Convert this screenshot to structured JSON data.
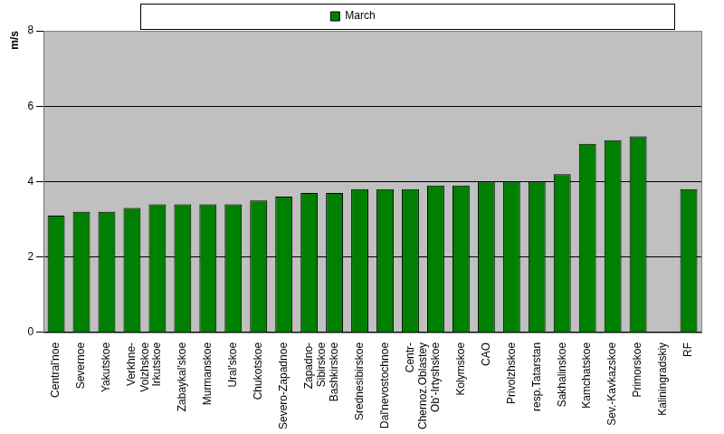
{
  "chart_data": {
    "type": "bar",
    "y_label": "m/s",
    "categories": [
      "Central'noe",
      "Severnoe",
      "Yakutskoe",
      "Verkhne-Volzhskoe",
      "Irkutskoe",
      "Zabaykal'skoe",
      "Murmanskoe",
      "Ural'skoe",
      "Chukotskoe",
      "Severo-Zapadnoe",
      "Zapadno-Sibirskoe",
      "Bashkirskoe",
      "Srednesibirskoe",
      "Dal'nevostochnoe",
      "Centr-Chernoz.Oblastey",
      "Ob'-Irtyshskoe",
      "Kolymskoe",
      "CAO",
      "Privolzhskoe",
      "resp.Tatarstan",
      "Sakhalinskoe",
      "Kamchatskoe",
      "Sev.-Kavkazskoe",
      "Primorskoe",
      "Kaliningradskiy",
      "RF"
    ],
    "series": [
      {
        "name": "March",
        "color": "#008000",
        "values": [
          3.1,
          3.2,
          3.2,
          3.3,
          3.4,
          3.4,
          3.4,
          3.4,
          3.5,
          3.6,
          3.7,
          3.7,
          3.8,
          3.8,
          3.8,
          3.9,
          3.9,
          4.0,
          4.0,
          4.0,
          4.2,
          5.0,
          5.1,
          5.2,
          null,
          3.8
        ]
      }
    ],
    "ylim": [
      0,
      8
    ],
    "yticks": [
      0,
      2,
      4,
      6,
      8
    ],
    "grid": true,
    "legend": "top"
  }
}
